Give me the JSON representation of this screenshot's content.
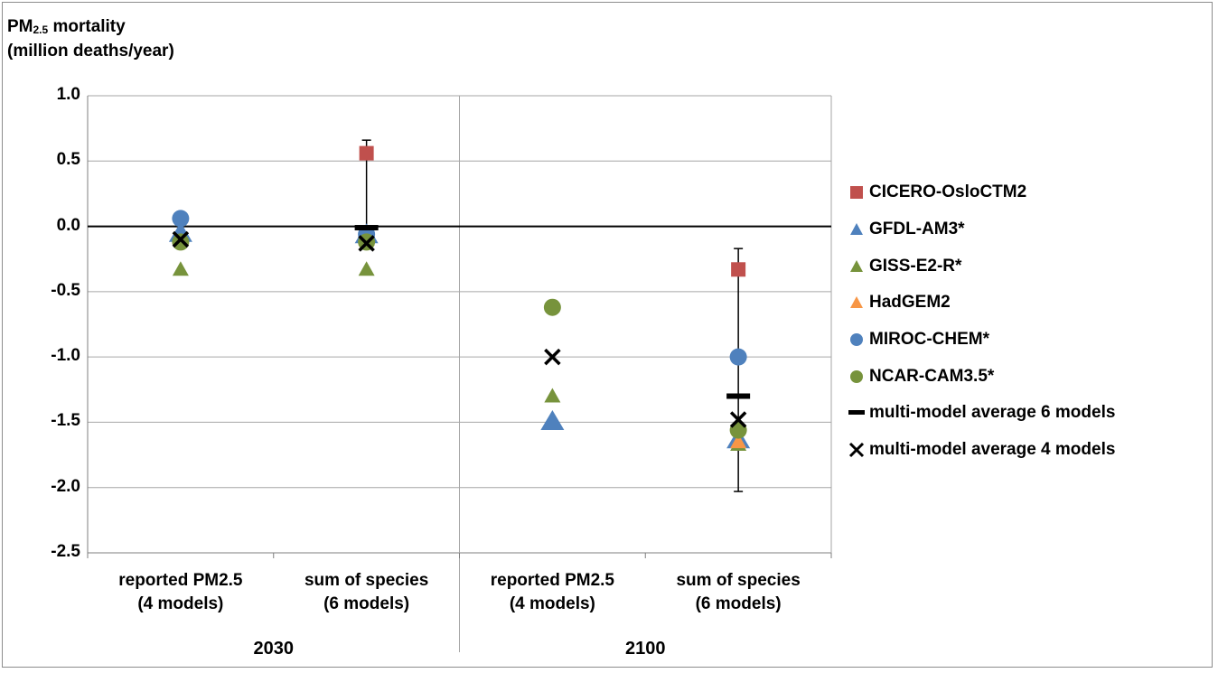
{
  "y_title": {
    "line1_main": "PM",
    "line1_sub": "2.5",
    "line1_rest": " mortality",
    "line2": "(million deaths/year)"
  },
  "chart_data": {
    "type": "scatter",
    "ylim": [
      -2.5,
      1.0
    ],
    "yticks": [
      "1.0",
      "0.5",
      "0.0",
      "-0.5",
      "-1.0",
      "-1.5",
      "-2.0",
      "-2.5"
    ],
    "ytick_values": [
      1.0,
      0.5,
      0.0,
      -0.5,
      -1.0,
      -1.5,
      -2.0,
      -2.5
    ],
    "categories": [
      {
        "line1": "reported PM2.5",
        "line2": "(4 models)"
      },
      {
        "line1": "sum of species",
        "line2": "(6 models)"
      },
      {
        "line1": "reported PM2.5",
        "line2": "(4 models)"
      },
      {
        "line1": "sum of species",
        "line2": "(6 models)"
      }
    ],
    "groups": [
      "2030",
      "2100"
    ],
    "grid": true,
    "legend_position": "right",
    "series": [
      {
        "name": "CICERO-OsloCTM2",
        "marker": "square",
        "color": "#c0504d",
        "values": [
          null,
          0.56,
          null,
          -0.33
        ]
      },
      {
        "name": "GFDL-AM3*",
        "marker": "triangle-large",
        "color": "#4f81bd",
        "values": [
          -0.05,
          -0.06,
          -1.49,
          -1.63
        ]
      },
      {
        "name": "GISS-E2-R*",
        "marker": "triangle",
        "color": "#77933c",
        "values": [
          -0.33,
          -0.33,
          -1.3,
          -1.67
        ]
      },
      {
        "name": "HadGEM2",
        "marker": "triangle",
        "color": "#f79646",
        "values": [
          null,
          -0.1,
          null,
          -1.65
        ]
      },
      {
        "name": "MIROC-CHEM*",
        "marker": "circle",
        "color": "#4f81bd",
        "values": [
          0.06,
          -0.06,
          null,
          -1.0
        ]
      },
      {
        "name": "NCAR-CAM3.5*",
        "marker": "circle",
        "color": "#77933c",
        "values": [
          -0.12,
          -0.12,
          -0.62,
          -1.56
        ]
      },
      {
        "name": "multi-model average 6 models",
        "marker": "dash",
        "color": "#000000",
        "values": [
          null,
          -0.01,
          null,
          -1.3
        ]
      },
      {
        "name": "multi-model average 4 models",
        "marker": "x",
        "color": "#000000",
        "values": [
          -0.1,
          -0.13,
          -1.0,
          -1.48
        ]
      }
    ],
    "error_bars": [
      {
        "category_index": 1,
        "low": -0.12,
        "high": 0.66
      },
      {
        "category_index": 3,
        "low": -2.03,
        "high": -0.17
      }
    ]
  }
}
